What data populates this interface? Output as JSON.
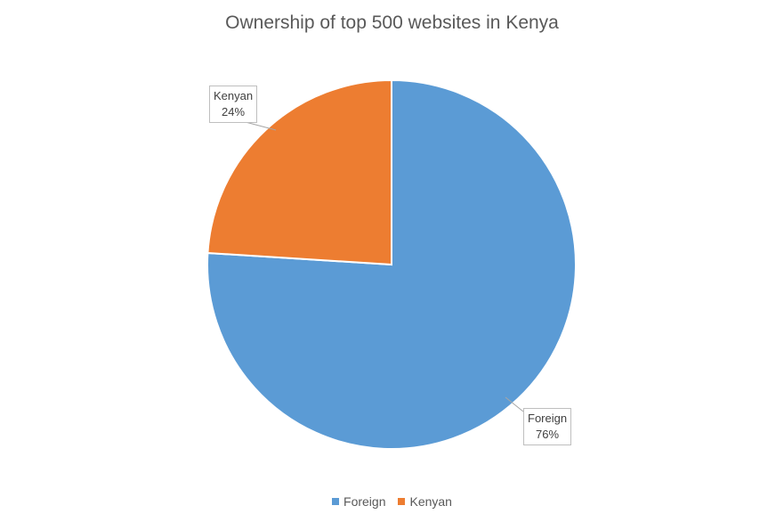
{
  "chart_data": {
    "type": "pie",
    "title": "Ownership of top 500 websites in Kenya",
    "categories": [
      "Foreign",
      "Kenyan"
    ],
    "values": [
      76,
      24
    ],
    "value_labels": [
      "76%",
      "24%"
    ],
    "colors": [
      "#5B9BD5",
      "#ED7D31"
    ],
    "legend_position": "bottom"
  }
}
